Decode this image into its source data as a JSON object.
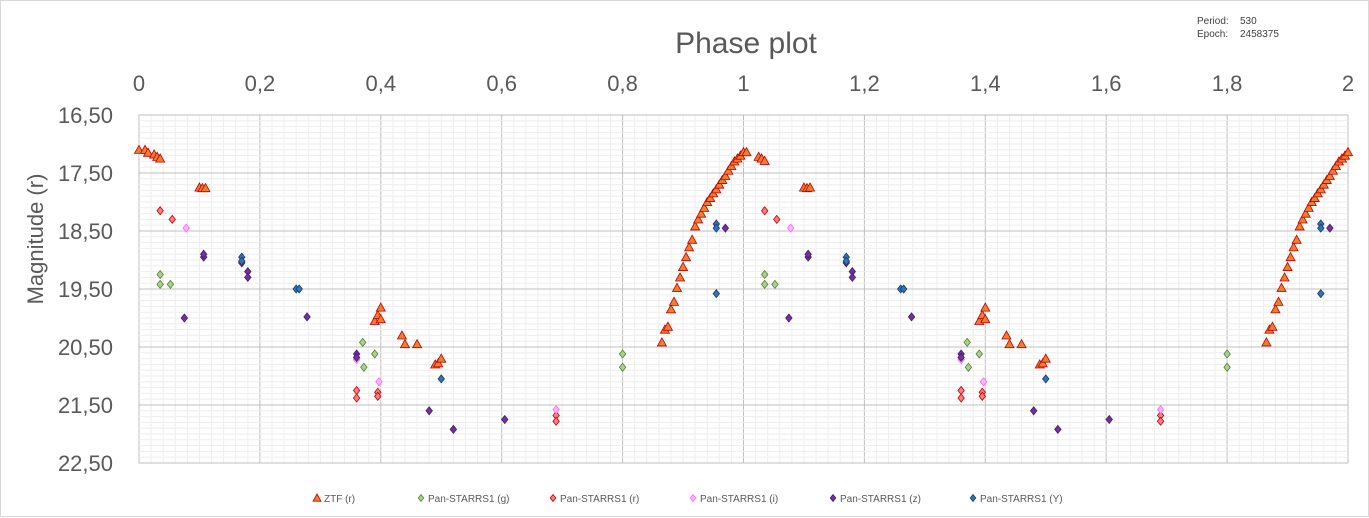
{
  "info": {
    "period_label": "Period:",
    "period_value": "530",
    "epoch_label": "Epoch:",
    "epoch_value": "2458375"
  },
  "chart_data": {
    "type": "scatter",
    "title": "Phase plot",
    "xlabel": "",
    "ylabel": "Magnitude (r)",
    "xlim": [
      0,
      2
    ],
    "ylim": [
      16.5,
      22.5
    ],
    "y_inverted": true,
    "x_axis_position": "top",
    "x_ticks": [
      "0",
      "0,2",
      "0,4",
      "0,6",
      "0,8",
      "1",
      "1,2",
      "1,4",
      "1,6",
      "1,8",
      "2"
    ],
    "x_tick_values": [
      0,
      0.2,
      0.4,
      0.6,
      0.8,
      1.0,
      1.2,
      1.4,
      1.6,
      1.8,
      2.0
    ],
    "y_ticks": [
      "16,50",
      "17,50",
      "18,50",
      "19,50",
      "20,50",
      "21,50",
      "22,50"
    ],
    "y_tick_values": [
      16.5,
      17.5,
      18.5,
      19.5,
      20.5,
      21.5,
      22.5
    ],
    "grid": true,
    "legend_position": "bottom",
    "series": [
      {
        "name": "ZTF (r)",
        "marker": "triangle",
        "color": "#ED7D31",
        "stroke": "#C00000",
        "points": [
          [
            0.0,
            17.1
          ],
          [
            0.01,
            17.1
          ],
          [
            0.015,
            17.15
          ],
          [
            0.025,
            17.18
          ],
          [
            0.03,
            17.22
          ],
          [
            0.035,
            17.25
          ],
          [
            0.1,
            17.75
          ],
          [
            0.105,
            17.76
          ],
          [
            0.11,
            17.76
          ],
          [
            0.39,
            20.05
          ],
          [
            0.395,
            19.95
          ],
          [
            0.4,
            19.82
          ],
          [
            0.4,
            20.02
          ],
          [
            0.435,
            20.3
          ],
          [
            0.44,
            20.45
          ],
          [
            0.46,
            20.45
          ],
          [
            0.49,
            20.8
          ],
          [
            0.495,
            20.78
          ],
          [
            0.5,
            20.7
          ],
          [
            0.865,
            20.42
          ],
          [
            0.87,
            20.2
          ],
          [
            0.875,
            20.15
          ],
          [
            0.88,
            19.85
          ],
          [
            0.885,
            19.72
          ],
          [
            0.89,
            19.48
          ],
          [
            0.895,
            19.3
          ],
          [
            0.9,
            19.12
          ],
          [
            0.905,
            18.95
          ],
          [
            0.91,
            18.78
          ],
          [
            0.915,
            18.65
          ],
          [
            0.92,
            18.42
          ],
          [
            0.925,
            18.3
          ],
          [
            0.93,
            18.2
          ],
          [
            0.935,
            18.1
          ],
          [
            0.94,
            18.0
          ],
          [
            0.945,
            17.93
          ],
          [
            0.95,
            17.85
          ],
          [
            0.955,
            17.78
          ],
          [
            0.96,
            17.7
          ],
          [
            0.965,
            17.62
          ],
          [
            0.97,
            17.55
          ],
          [
            0.975,
            17.46
          ],
          [
            0.98,
            17.38
          ],
          [
            0.985,
            17.3
          ],
          [
            0.99,
            17.25
          ],
          [
            0.995,
            17.2
          ],
          [
            1.0,
            17.14
          ],
          [
            1.005,
            17.14
          ],
          [
            1.025,
            17.22
          ],
          [
            1.03,
            17.25
          ],
          [
            1.035,
            17.29
          ],
          [
            1.1,
            17.75
          ],
          [
            1.105,
            17.76
          ],
          [
            1.11,
            17.75
          ],
          [
            1.39,
            20.05
          ],
          [
            1.395,
            19.95
          ],
          [
            1.4,
            19.82
          ],
          [
            1.4,
            20.02
          ],
          [
            1.435,
            20.3
          ],
          [
            1.44,
            20.45
          ],
          [
            1.46,
            20.45
          ],
          [
            1.49,
            20.8
          ],
          [
            1.495,
            20.78
          ],
          [
            1.5,
            20.7
          ],
          [
            1.865,
            20.42
          ],
          [
            1.87,
            20.2
          ],
          [
            1.875,
            20.15
          ],
          [
            1.88,
            19.85
          ],
          [
            1.885,
            19.72
          ],
          [
            1.89,
            19.48
          ],
          [
            1.895,
            19.3
          ],
          [
            1.9,
            19.12
          ],
          [
            1.905,
            18.95
          ],
          [
            1.91,
            18.78
          ],
          [
            1.915,
            18.65
          ],
          [
            1.92,
            18.42
          ],
          [
            1.925,
            18.3
          ],
          [
            1.93,
            18.2
          ],
          [
            1.935,
            18.1
          ],
          [
            1.94,
            18.0
          ],
          [
            1.945,
            17.93
          ],
          [
            1.95,
            17.85
          ],
          [
            1.955,
            17.78
          ],
          [
            1.96,
            17.7
          ],
          [
            1.965,
            17.62
          ],
          [
            1.97,
            17.55
          ],
          [
            1.975,
            17.46
          ],
          [
            1.98,
            17.38
          ],
          [
            1.985,
            17.3
          ],
          [
            1.99,
            17.25
          ],
          [
            1.995,
            17.2
          ],
          [
            2.0,
            17.14
          ]
        ]
      },
      {
        "name": "Pan-STARRS1 (g)",
        "marker": "diamond",
        "color": "#A9D18E",
        "stroke": "#548235",
        "points": [
          [
            0.035,
            19.25
          ],
          [
            0.035,
            19.42
          ],
          [
            0.052,
            19.42
          ],
          [
            0.37,
            20.42
          ],
          [
            0.372,
            20.85
          ],
          [
            0.39,
            20.62
          ],
          [
            0.8,
            20.62
          ],
          [
            0.8,
            20.85
          ],
          [
            1.035,
            19.25
          ],
          [
            1.035,
            19.42
          ],
          [
            1.052,
            19.42
          ],
          [
            1.37,
            20.42
          ],
          [
            1.372,
            20.85
          ],
          [
            1.39,
            20.62
          ],
          [
            1.8,
            20.62
          ],
          [
            1.8,
            20.85
          ]
        ]
      },
      {
        "name": "Pan-STARRS1 (r)",
        "marker": "diamond",
        "color": "#FF7C80",
        "stroke": "#C00000",
        "points": [
          [
            0.035,
            18.15
          ],
          [
            0.055,
            18.3
          ],
          [
            0.36,
            21.25
          ],
          [
            0.36,
            21.38
          ],
          [
            0.395,
            21.28
          ],
          [
            0.395,
            21.35
          ],
          [
            0.69,
            21.68
          ],
          [
            0.69,
            21.78
          ],
          [
            1.035,
            18.15
          ],
          [
            1.055,
            18.3
          ],
          [
            1.36,
            21.25
          ],
          [
            1.36,
            21.38
          ],
          [
            1.395,
            21.28
          ],
          [
            1.395,
            21.35
          ],
          [
            1.69,
            21.68
          ],
          [
            1.69,
            21.78
          ]
        ]
      },
      {
        "name": "Pan-STARRS1 (i)",
        "marker": "diamond",
        "color": "#FFB3FF",
        "stroke": "#FF66FF",
        "points": [
          [
            0.078,
            18.45
          ],
          [
            0.36,
            20.72
          ],
          [
            0.397,
            21.1
          ],
          [
            0.69,
            21.58
          ],
          [
            1.078,
            18.45
          ],
          [
            1.36,
            20.72
          ],
          [
            1.397,
            21.1
          ],
          [
            1.69,
            21.58
          ]
        ]
      },
      {
        "name": "Pan-STARRS1 (z)",
        "marker": "diamond",
        "color": "#7030A0",
        "stroke": "#4B1C6B",
        "points": [
          [
            0.107,
            18.95
          ],
          [
            0.107,
            18.9
          ],
          [
            0.17,
            19.05
          ],
          [
            0.18,
            19.2
          ],
          [
            0.18,
            19.3
          ],
          [
            0.075,
            20.0
          ],
          [
            0.278,
            19.98
          ],
          [
            0.36,
            20.62
          ],
          [
            0.36,
            20.68
          ],
          [
            0.48,
            21.6
          ],
          [
            0.52,
            21.92
          ],
          [
            0.605,
            21.75
          ],
          [
            0.97,
            18.45
          ],
          [
            1.107,
            18.95
          ],
          [
            1.107,
            18.9
          ],
          [
            1.17,
            19.05
          ],
          [
            1.18,
            19.2
          ],
          [
            1.18,
            19.3
          ],
          [
            1.075,
            20.0
          ],
          [
            1.278,
            19.98
          ],
          [
            1.36,
            20.62
          ],
          [
            1.36,
            20.68
          ],
          [
            1.48,
            21.6
          ],
          [
            1.52,
            21.92
          ],
          [
            1.605,
            21.75
          ],
          [
            1.97,
            18.45
          ]
        ]
      },
      {
        "name": "Pan-STARRS1 (Y)",
        "marker": "diamond",
        "color": "#2E75B6",
        "stroke": "#1F3864",
        "points": [
          [
            0.17,
            18.95
          ],
          [
            0.17,
            19.02
          ],
          [
            0.26,
            19.5
          ],
          [
            0.265,
            19.5
          ],
          [
            0.5,
            21.05
          ],
          [
            0.955,
            18.38
          ],
          [
            0.955,
            18.45
          ],
          [
            0.955,
            19.58
          ],
          [
            1.17,
            18.95
          ],
          [
            1.17,
            19.02
          ],
          [
            1.26,
            19.5
          ],
          [
            1.265,
            19.5
          ],
          [
            1.5,
            21.05
          ],
          [
            1.955,
            18.38
          ],
          [
            1.955,
            18.45
          ],
          [
            1.955,
            19.58
          ]
        ]
      }
    ]
  }
}
